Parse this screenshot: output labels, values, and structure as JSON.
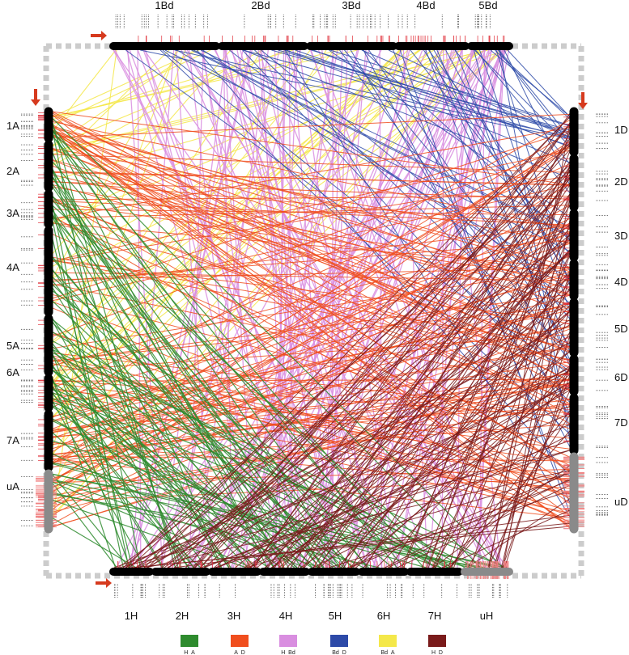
{
  "top_genome": {
    "chromosomes": [
      "1Bd",
      "2Bd",
      "3Bd",
      "4Bd",
      "5Bd"
    ]
  },
  "bottom_genome": {
    "chromosomes": [
      "1H",
      "2H",
      "3H",
      "4H",
      "5H",
      "6H",
      "7H",
      "uH"
    ]
  },
  "left_genome": {
    "chromosomes": [
      "1A",
      "2A",
      "3A",
      "4A",
      "5A",
      "6A",
      "7A",
      "uA"
    ]
  },
  "right_genome": {
    "chromosomes": [
      "1D",
      "2D",
      "3D",
      "4D",
      "5D",
      "6D",
      "7D",
      "uD"
    ]
  },
  "legend": [
    {
      "label": "H_A",
      "color": "#2e8b2e"
    },
    {
      "label": "A_D",
      "color": "#f04e1e"
    },
    {
      "label": "H_Bd",
      "color": "#d98ee0"
    },
    {
      "label": "Bd_D",
      "color": "#2d4aa8"
    },
    {
      "label": "Bd_A",
      "color": "#f4e84a"
    },
    {
      "label": "H_D",
      "color": "#7a1b1b"
    }
  ],
  "colors": {
    "chromosome": "#000000",
    "unassigned_chromosome": "#8a8a8a",
    "marker_tick": "#e0303a",
    "frame_dash": "#cccccc",
    "arrow": "#d63a1e"
  },
  "icons": [
    "arrow-right-icon",
    "arrow-down-icon"
  ]
}
